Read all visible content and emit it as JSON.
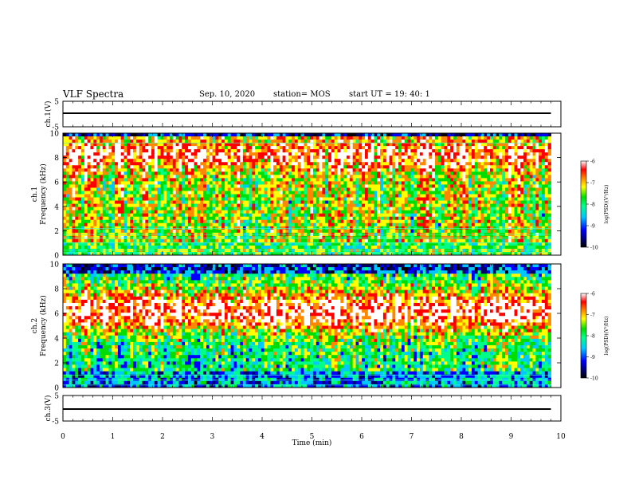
{
  "header": {
    "title": "VLF Spectra",
    "date": "Sep. 10, 2020",
    "station": "station= MOS",
    "start": "start  UT =   19: 40: 1"
  },
  "chart_data": [
    {
      "type": "line",
      "name": "ch1_waveform",
      "ylabel": "ch.1(V)",
      "yticks": [
        "5",
        "-5"
      ],
      "ylim": [
        -5,
        5
      ],
      "xlim": [
        0,
        10
      ],
      "series": [
        {
          "x": [
            0,
            9.8
          ],
          "y": [
            0,
            0
          ]
        }
      ]
    },
    {
      "type": "heatmap",
      "name": "ch1_spectrogram",
      "ylabel_line1": "ch.1",
      "ylabel_line2": "Frequency  (kHz)",
      "ylim": [
        0,
        10
      ],
      "yticks": [
        "0",
        "2",
        "4",
        "6",
        "8",
        "10"
      ],
      "xlim": [
        0,
        10
      ],
      "data_xmax": 9.8,
      "colorbar": {
        "label": "log(PSD)(V²/Hz)",
        "ticks": [
          "-6",
          "-7",
          "-8",
          "-9",
          "-10"
        ],
        "range": [
          -10,
          -6
        ]
      }
    },
    {
      "type": "heatmap",
      "name": "ch2_spectrogram",
      "ylabel_line1": "ch.2",
      "ylabel_line2": "Frequency  (kHz)",
      "ylim": [
        0,
        10
      ],
      "yticks": [
        "0",
        "2",
        "4",
        "6",
        "8",
        "10"
      ],
      "xlim": [
        0,
        10
      ],
      "data_xmax": 9.8,
      "colorbar": {
        "label": "log(PSD)(V²/Hz)",
        "ticks": [
          "-6",
          "-7",
          "-8",
          "-9",
          "-10"
        ],
        "range": [
          -10,
          -6
        ]
      }
    },
    {
      "type": "line",
      "name": "ch3_waveform",
      "ylabel": "ch.3(V)",
      "yticks": [
        "5",
        "-5"
      ],
      "ylim": [
        -5,
        5
      ],
      "xlim": [
        0,
        10
      ],
      "series": [
        {
          "x": [
            0,
            9.8
          ],
          "y": [
            0,
            0
          ]
        }
      ]
    }
  ],
  "xaxis": {
    "label": "Time  (min)",
    "ticks": [
      "0",
      "1",
      "2",
      "3",
      "4",
      "5",
      "6",
      "7",
      "8",
      "9",
      "10"
    ]
  }
}
